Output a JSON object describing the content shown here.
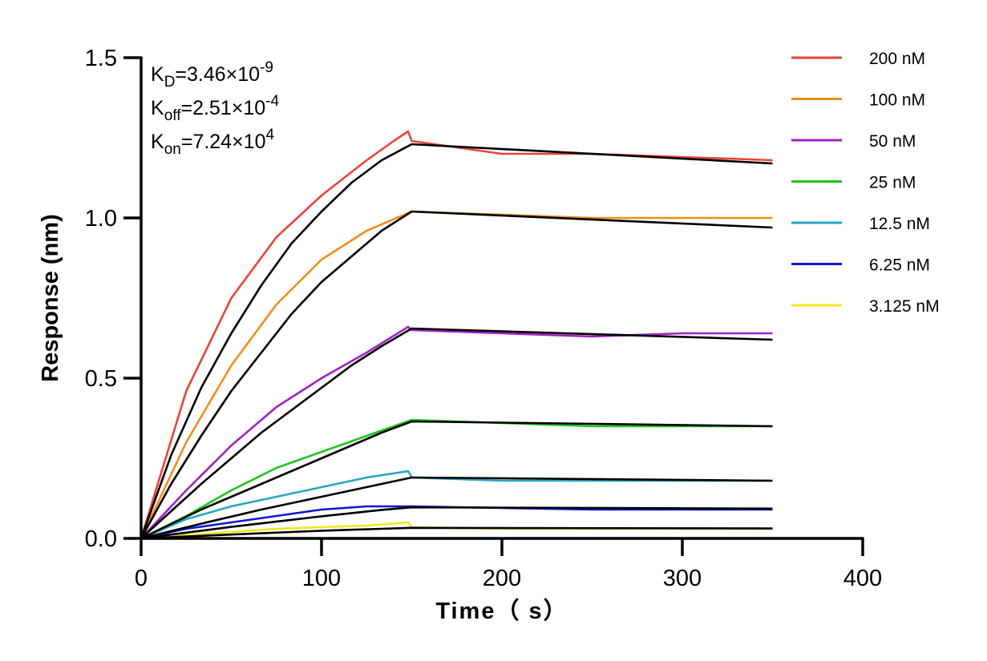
{
  "chart_data": {
    "type": "line",
    "title": "",
    "xlabel": "Time（ s）",
    "ylabel": "Response (nm)",
    "xlim": [
      0,
      400
    ],
    "ylim": [
      0,
      1.5
    ],
    "x_ticks": [
      0,
      100,
      200,
      300,
      400
    ],
    "x_tick_labels": [
      "0",
      "100",
      "200",
      "300",
      "400"
    ],
    "y_ticks": [
      0,
      0.5,
      1.0,
      1.5
    ],
    "y_tick_labels": [
      "0.0",
      "0.5",
      "1.0",
      "1.5"
    ],
    "grid": false,
    "legend_position": "top-right",
    "annotations": [
      {
        "base": "K",
        "sub": "D",
        "eq": "=3.46×10",
        "sup": "-9"
      },
      {
        "base": "K",
        "sub": "off",
        "eq": "=2.51×10",
        "sup": "-4"
      },
      {
        "base": "K",
        "sub": "on",
        "eq": "=7.24×10",
        "sup": "4"
      }
    ],
    "association_end": 150,
    "x_end": 350,
    "fit_color": "#000000",
    "series": [
      {
        "name": "200 nM",
        "color": "#e8443a",
        "x": [
          0,
          25,
          50,
          75,
          100,
          125,
          140,
          148,
          150,
          200,
          250,
          300,
          350
        ],
        "values": [
          0,
          0.46,
          0.75,
          0.94,
          1.07,
          1.18,
          1.24,
          1.27,
          1.24,
          1.2,
          1.2,
          1.19,
          1.18
        ]
      },
      {
        "name": "100 nM",
        "color": "#f28c1c",
        "x": [
          0,
          25,
          50,
          75,
          100,
          125,
          150,
          200,
          250,
          300,
          350
        ],
        "values": [
          0,
          0.3,
          0.54,
          0.73,
          0.87,
          0.96,
          1.02,
          1.01,
          1.0,
          1.0,
          1.0
        ]
      },
      {
        "name": "50 nM",
        "color": "#a020c8",
        "x": [
          0,
          25,
          50,
          75,
          100,
          125,
          148,
          150,
          200,
          250,
          300,
          350
        ],
        "values": [
          0,
          0.15,
          0.29,
          0.41,
          0.5,
          0.58,
          0.66,
          0.65,
          0.64,
          0.63,
          0.64,
          0.64
        ]
      },
      {
        "name": "25 nM",
        "color": "#1fc41f",
        "x": [
          0,
          25,
          50,
          75,
          100,
          125,
          150,
          200,
          250,
          300,
          350
        ],
        "values": [
          0,
          0.07,
          0.15,
          0.22,
          0.27,
          0.32,
          0.37,
          0.36,
          0.35,
          0.35,
          0.35
        ]
      },
      {
        "name": "12.5 nM",
        "color": "#2aa6c0",
        "x": [
          0,
          25,
          50,
          75,
          100,
          125,
          148,
          150,
          200,
          250,
          300,
          350
        ],
        "values": [
          0,
          0.06,
          0.1,
          0.13,
          0.16,
          0.19,
          0.21,
          0.19,
          0.18,
          0.18,
          0.18,
          0.18
        ]
      },
      {
        "name": "6.25 nM",
        "color": "#1515d8",
        "x": [
          0,
          25,
          50,
          75,
          100,
          125,
          150,
          200,
          250,
          300,
          350
        ],
        "values": [
          0,
          0.03,
          0.05,
          0.07,
          0.09,
          0.1,
          0.1,
          0.095,
          0.09,
          0.09,
          0.09
        ]
      },
      {
        "name": "3.125 nM",
        "color": "#f2e41e",
        "x": [
          0,
          25,
          50,
          75,
          100,
          125,
          148,
          150,
          200,
          250,
          300,
          350
        ],
        "values": [
          0,
          0.01,
          0.02,
          0.03,
          0.035,
          0.04,
          0.05,
          0.035,
          0.03,
          0.03,
          0.03,
          0.03
        ]
      }
    ],
    "fits": [
      {
        "association": [
          0,
          0.26,
          0.47,
          0.64,
          0.79,
          0.92,
          1.02,
          1.11,
          1.18,
          1.23
        ],
        "dissociation": [
          1.23,
          1.17
        ]
      },
      {
        "association": [
          0,
          0.17,
          0.32,
          0.46,
          0.58,
          0.7,
          0.8,
          0.88,
          0.96,
          1.02
        ],
        "dissociation": [
          1.02,
          0.97
        ]
      },
      {
        "association": [
          0,
          0.085,
          0.17,
          0.25,
          0.33,
          0.4,
          0.47,
          0.54,
          0.6,
          0.655
        ],
        "dissociation": [
          0.655,
          0.62
        ]
      },
      {
        "association": [
          0,
          0.045,
          0.09,
          0.13,
          0.17,
          0.21,
          0.25,
          0.29,
          0.33,
          0.365
        ],
        "dissociation": [
          0.365,
          0.35
        ]
      },
      {
        "association": [
          0,
          0.023,
          0.046,
          0.068,
          0.09,
          0.11,
          0.13,
          0.15,
          0.17,
          0.19
        ],
        "dissociation": [
          0.19,
          0.18
        ]
      },
      {
        "association": [
          0,
          0.012,
          0.024,
          0.036,
          0.047,
          0.058,
          0.069,
          0.079,
          0.089,
          0.097
        ],
        "dissociation": [
          0.097,
          0.093
        ]
      },
      {
        "association": [
          0,
          0.004,
          0.008,
          0.012,
          0.016,
          0.02,
          0.024,
          0.027,
          0.03,
          0.033
        ],
        "dissociation": [
          0.033,
          0.031
        ]
      }
    ]
  }
}
